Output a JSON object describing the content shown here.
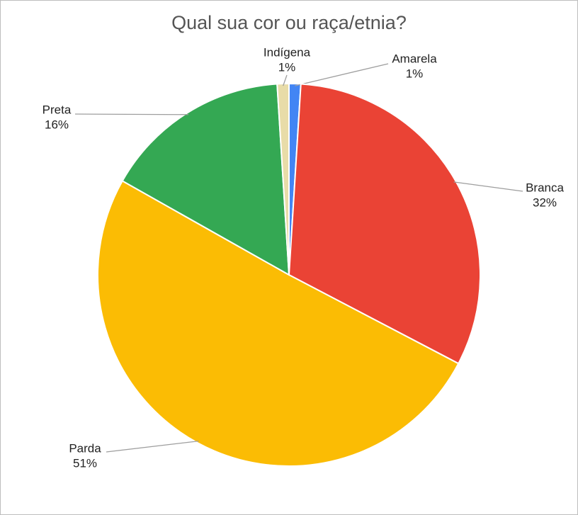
{
  "chart_data": {
    "type": "pie",
    "title": "Qual sua cor ou raça/etnia?",
    "categories": [
      "Amarela",
      "Branca",
      "Parda",
      "Preta",
      "Indígena"
    ],
    "values": [
      1,
      32,
      51,
      16,
      1
    ],
    "value_labels": [
      "1%",
      "32%",
      "51%",
      "16%",
      "1%"
    ],
    "colors": [
      "#4285f4",
      "#ea4335",
      "#fbbc04",
      "#34a853",
      "#e8dca8"
    ]
  }
}
